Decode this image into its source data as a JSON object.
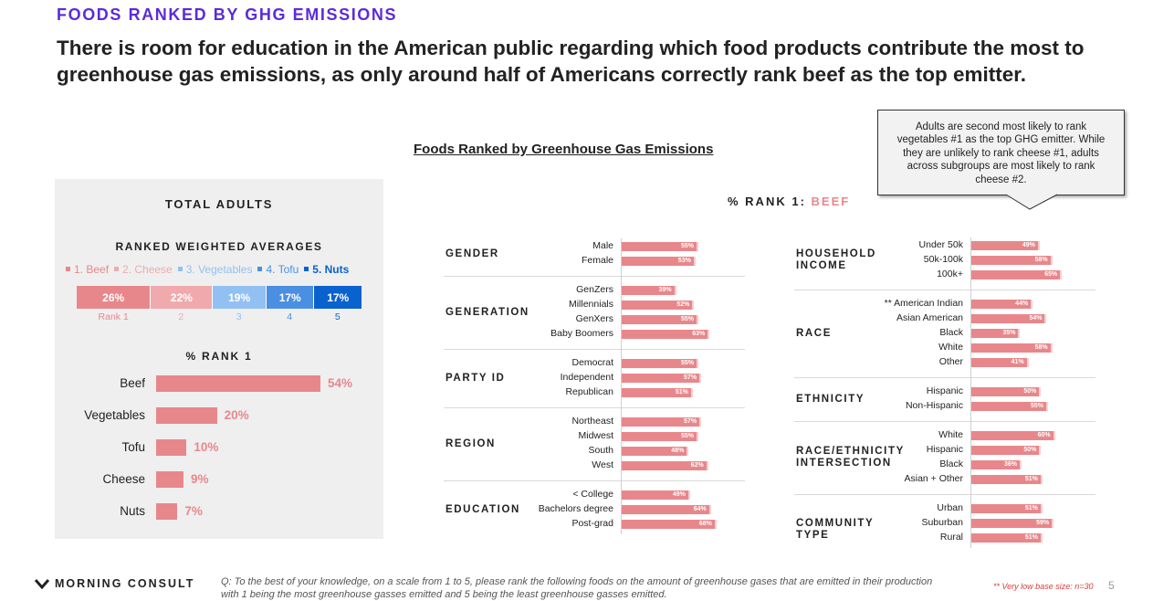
{
  "header": {
    "eyebrow": "FOODS RANKED BY GHG EMISSIONS",
    "headline": "There is room for education in the American public regarding which food products contribute the most to greenhouse gas emissions, as only around half of Americans correctly rank beef as the top emitter."
  },
  "chart_title": "Foods Ranked by Greenhouse Gas Emissions",
  "callout": "Adults are second most likely to rank vegetables #1 as the top GHG emitter. While they are unlikely to rank cheese #1, adults across subgroups are most likely to rank cheese #2.",
  "left_panel": {
    "title": "TOTAL ADULTS",
    "rwa_title": "RANKED WEIGHTED  AVERAGES",
    "rank1_title": "% RANK 1"
  },
  "beef_title": {
    "prefix": "% RANK 1: ",
    "accent": "BEEF"
  },
  "chart_data": [
    {
      "type": "bar",
      "orientation": "horizontal-stacked",
      "title": "RANKED WEIGHTED  AVERAGES",
      "series": [
        {
          "name": "1. Beef",
          "value": 26,
          "value_label": "26%",
          "rank_label": "Rank 1",
          "color": "#e8878b",
          "label_color": "#e8878b"
        },
        {
          "name": "2. Cheese",
          "value": 22,
          "value_label": "22%",
          "rank_label": "2",
          "color": "#f0aaad",
          "label_color": "#f0aaad"
        },
        {
          "name": "3. Vegetables",
          "value": 19,
          "value_label": "19%",
          "rank_label": "3",
          "color": "#93c0f2",
          "label_color": "#93c0f2"
        },
        {
          "name": "4. Tofu",
          "value": 17,
          "value_label": "17%",
          "rank_label": "4",
          "color": "#4a8fe2",
          "label_color": "#4a8fe2"
        },
        {
          "name": "5. Nuts",
          "value": 17,
          "value_label": "17%",
          "rank_label": "5",
          "color": "#0a62cf",
          "label_color": "#0a62cf"
        }
      ]
    },
    {
      "type": "bar",
      "orientation": "horizontal",
      "title": "% RANK 1",
      "categories": [
        "Beef",
        "Vegetables",
        "Tofu",
        "Cheese",
        "Nuts"
      ],
      "values": [
        54,
        20,
        10,
        9,
        7
      ],
      "value_labels": [
        "54%",
        "20%",
        "10%",
        "9%",
        "7%"
      ],
      "color": "#e8878b"
    },
    {
      "type": "bar",
      "orientation": "horizontal",
      "title": "% RANK 1: BEEF",
      "color": "#e8878b",
      "groups": [
        {
          "name": "GENDER",
          "rows": [
            {
              "label": "Male",
              "value": 55,
              "value_label": "55%"
            },
            {
              "label": "Female",
              "value": 53,
              "value_label": "53%"
            }
          ]
        },
        {
          "name": "GENERATION",
          "rows": [
            {
              "label": "GenZers",
              "value": 39,
              "value_label": "39%"
            },
            {
              "label": "Millennials",
              "value": 52,
              "value_label": "52%"
            },
            {
              "label": "GenXers",
              "value": 55,
              "value_label": "55%"
            },
            {
              "label": "Baby Boomers",
              "value": 63,
              "value_label": "63%"
            }
          ]
        },
        {
          "name": "PARTY ID",
          "rows": [
            {
              "label": "Democrat",
              "value": 55,
              "value_label": "55%"
            },
            {
              "label": "Independent",
              "value": 57,
              "value_label": "57%"
            },
            {
              "label": "Republican",
              "value": 51,
              "value_label": "51%"
            }
          ]
        },
        {
          "name": "REGION",
          "rows": [
            {
              "label": "Northeast",
              "value": 57,
              "value_label": "57%"
            },
            {
              "label": "Midwest",
              "value": 55,
              "value_label": "55%"
            },
            {
              "label": "South",
              "value": 48,
              "value_label": "48%"
            },
            {
              "label": "West",
              "value": 62,
              "value_label": "62%"
            }
          ]
        },
        {
          "name": "EDUCATION",
          "rows": [
            {
              "label": "< College",
              "value": 49,
              "value_label": "49%"
            },
            {
              "label": "Bachelors degree",
              "value": 64,
              "value_label": "64%"
            },
            {
              "label": "Post-grad",
              "value": 68,
              "value_label": "68%"
            }
          ]
        },
        {
          "name": "HOUSEHOLD INCOME",
          "rows": [
            {
              "label": "Under 50k",
              "value": 49,
              "value_label": "49%"
            },
            {
              "label": "50k-100k",
              "value": 58,
              "value_label": "58%"
            },
            {
              "label": "100k+",
              "value": 65,
              "value_label": "65%"
            }
          ]
        },
        {
          "name": "RACE",
          "rows": [
            {
              "label": "** American Indian",
              "value": 44,
              "value_label": "44%"
            },
            {
              "label": "Asian American",
              "value": 54,
              "value_label": "54%"
            },
            {
              "label": "Black",
              "value": 35,
              "value_label": "35%"
            },
            {
              "label": "White",
              "value": 58,
              "value_label": "58%"
            },
            {
              "label": "Other",
              "value": 41,
              "value_label": "41%"
            }
          ]
        },
        {
          "name": "ETHNICITY",
          "rows": [
            {
              "label": "Hispanic",
              "value": 50,
              "value_label": "50%"
            },
            {
              "label": "Non-Hispanic",
              "value": 55,
              "value_label": "55%"
            }
          ]
        },
        {
          "name": "RACE/ETHNICITY INTERSECTION",
          "rows": [
            {
              "label": "White",
              "value": 60,
              "value_label": "60%"
            },
            {
              "label": "Hispanic",
              "value": 50,
              "value_label": "50%"
            },
            {
              "label": "Black",
              "value": 36,
              "value_label": "36%"
            },
            {
              "label": "Asian + Other",
              "value": 51,
              "value_label": "51%"
            }
          ]
        },
        {
          "name": "COMMUNITY TYPE",
          "rows": [
            {
              "label": "Urban",
              "value": 51,
              "value_label": "51%"
            },
            {
              "label": "Suburban",
              "value": 59,
              "value_label": "59%"
            },
            {
              "label": "Rural",
              "value": 51,
              "value_label": "51%"
            }
          ]
        }
      ]
    }
  ],
  "footer": {
    "logo": "MORNING CONSULT",
    "question": "Q: To the best of your knowledge, on a scale from 1 to 5, please rank the following foods on the amount of greenhouse gases that are emitted in their production with 1 being the most greenhouse gasses emitted and 5 being the least greenhouse gasses emitted.",
    "footnote": "** Very low base size: n=30",
    "page": "5"
  }
}
